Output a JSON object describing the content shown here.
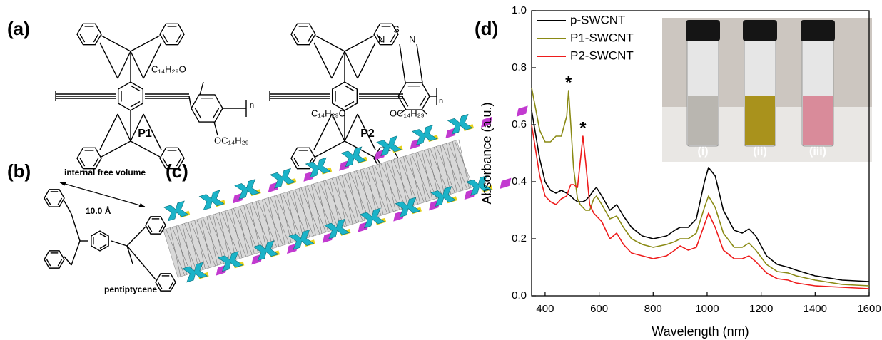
{
  "figure": {
    "panel_a": {
      "label": "(a)",
      "p1": {
        "name": "P1",
        "sub_top": "C₁₄H₂₉O",
        "sub_bottom": "OC₁₄H₂₉",
        "n": "n"
      },
      "p2": {
        "name": "P2",
        "sub_left": "C₁₄H₂₉O",
        "sub_right": "OC₁₄H₂₉",
        "n": "n",
        "atoms": [
          "N",
          "S",
          "N"
        ]
      }
    },
    "panel_b": {
      "label": "(b)",
      "top_text": "internal free volume",
      "distance": "10.0 Å",
      "bottom_text": "pentiptycene"
    },
    "panel_c": {
      "label": "(c)"
    },
    "panel_d": {
      "label": "(d)",
      "inset_labels": [
        "(i)",
        "(ii)",
        "(iii)"
      ]
    }
  },
  "chart_data": {
    "type": "line",
    "xlabel": "Wavelength (nm)",
    "ylabel": "Absorbance (a.u.)",
    "x": [
      350,
      380,
      400,
      420,
      440,
      460,
      480,
      487,
      495,
      505,
      520,
      530,
      540,
      550,
      565,
      580,
      590,
      610,
      640,
      665,
      690,
      720,
      760,
      800,
      850,
      880,
      900,
      930,
      960,
      990,
      1005,
      1030,
      1060,
      1100,
      1130,
      1155,
      1180,
      1220,
      1260,
      1300,
      1330,
      1400,
      1500,
      1600
    ],
    "series": [
      {
        "name": "p-SWCNT",
        "color": "#000000",
        "values": [
          0.65,
          0.48,
          0.4,
          0.37,
          0.36,
          0.37,
          0.36,
          0.355,
          0.35,
          0.34,
          0.33,
          0.33,
          0.33,
          0.335,
          0.35,
          0.37,
          0.38,
          0.35,
          0.3,
          0.32,
          0.28,
          0.24,
          0.21,
          0.2,
          0.21,
          0.23,
          0.24,
          0.24,
          0.27,
          0.4,
          0.45,
          0.42,
          0.3,
          0.23,
          0.22,
          0.235,
          0.21,
          0.14,
          0.11,
          0.1,
          0.09,
          0.07,
          0.055,
          0.05
        ]
      },
      {
        "name": "P1-SWCNT",
        "color": "#8a8a14",
        "values": [
          0.73,
          0.58,
          0.54,
          0.54,
          0.56,
          0.56,
          0.63,
          0.72,
          0.6,
          0.45,
          0.34,
          0.32,
          0.31,
          0.3,
          0.3,
          0.34,
          0.35,
          0.32,
          0.27,
          0.28,
          0.24,
          0.2,
          0.18,
          0.17,
          0.18,
          0.19,
          0.2,
          0.2,
          0.22,
          0.31,
          0.35,
          0.31,
          0.22,
          0.17,
          0.17,
          0.185,
          0.16,
          0.11,
          0.085,
          0.08,
          0.07,
          0.055,
          0.04,
          0.035
        ]
      },
      {
        "name": "P2-SWCNT",
        "color": "#ee1c1c",
        "values": [
          0.6,
          0.42,
          0.35,
          0.33,
          0.32,
          0.34,
          0.35,
          0.37,
          0.39,
          0.39,
          0.38,
          0.47,
          0.56,
          0.47,
          0.32,
          0.29,
          0.28,
          0.26,
          0.2,
          0.22,
          0.18,
          0.15,
          0.14,
          0.13,
          0.14,
          0.16,
          0.175,
          0.16,
          0.17,
          0.25,
          0.29,
          0.24,
          0.16,
          0.13,
          0.13,
          0.14,
          0.12,
          0.08,
          0.06,
          0.055,
          0.045,
          0.035,
          0.03,
          0.025
        ]
      }
    ],
    "xlim": [
      350,
      1600
    ],
    "xticks": [
      400,
      600,
      800,
      1000,
      1200,
      1400,
      1600
    ],
    "ylim": [
      0,
      1.0
    ],
    "yticks": [
      {
        "value": 0,
        "label": "0.0"
      },
      0.2,
      0.4,
      0.6,
      0.8,
      {
        "value": 1.0,
        "label": "1.0"
      }
    ],
    "legend": "upper left",
    "annotations": [
      {
        "text": "*",
        "x": 487,
        "y": 0.76
      },
      {
        "text": "*",
        "x": 540,
        "y": 0.6
      }
    ]
  }
}
